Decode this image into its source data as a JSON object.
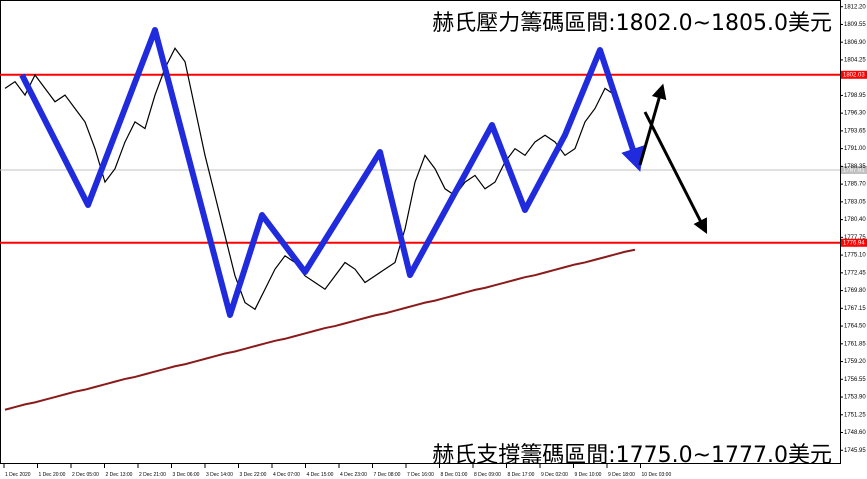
{
  "chart_data": {
    "type": "line",
    "title": "赫氏壓力籌碼區間:1802.0~1805.0美元",
    "subtitle": "赫氏支撐籌碼區間:1775.0~1777.0美元",
    "x_labels": [
      "1 Dec 2020",
      "1 Dec 20:00",
      "2 Dec 05:00",
      "2 Dec 13:00",
      "2 Dec 21:00",
      "3 Dec 06:00",
      "3 Dec 14:00",
      "3 Dec 22:00",
      "4 Dec 07:00",
      "4 Dec 15:00",
      "4 Dec 23:00",
      "7 Dec 08:00",
      "7 Dec 16:00",
      "8 Dec 01:00",
      "8 Dec 09:00",
      "8 Dec 17:00",
      "9 Dec 02:00",
      "9 Dec 10:00",
      "9 Dec 18:00",
      "10 Dec 03:00"
    ],
    "ylim": [
      1743.3,
      1813.2
    ],
    "yticks": [
      1745.95,
      {
        "value": 1748.6,
        "label": "1748.60"
      },
      1751.25,
      {
        "value": 1753.9,
        "label": "1753.90"
      },
      1756.55,
      {
        "value": 1759.2,
        "label": "1759.20"
      },
      1761.85,
      {
        "value": 1764.5,
        "label": "1764.50"
      },
      1767.15,
      {
        "value": 1769.8,
        "label": "1769.80"
      },
      1772.45,
      {
        "value": 1775.1,
        "label": "1775.10"
      },
      1777.75,
      {
        "value": 1780.4,
        "label": "1780.40"
      },
      1783.05,
      {
        "value": 1785.7,
        "label": "1785.70"
      },
      1788.35,
      {
        "value": 1791.0,
        "label": "1791.00"
      },
      1793.65,
      {
        "value": 1796.3,
        "label": "1796.30"
      },
      1798.95,
      1804.25,
      {
        "value": 1806.9,
        "label": "1806.90"
      },
      1809.55,
      {
        "value": 1812.2,
        "label": "1812.20"
      }
    ],
    "levels": [
      {
        "value": 1802.03,
        "color": "#ff0000"
      },
      {
        "value": 1787.81,
        "color": "#c0c0c0"
      },
      {
        "value": 1776.94,
        "color": "#ff0000"
      }
    ],
    "series": [
      {
        "color": "#000000",
        "values": [
          1800,
          1801,
          1799,
          1802,
          1800,
          1798,
          1799,
          1797,
          1795,
          1791,
          1786,
          1788,
          1792,
          1795,
          1794,
          1799,
          1803,
          1806,
          1804,
          1797,
          1790,
          1784,
          1778,
          1772,
          1768,
          1767,
          1770,
          1773,
          1775,
          1774,
          1772,
          1771,
          1770,
          1772,
          1774,
          1773,
          1771,
          1772,
          1773,
          1774,
          1779,
          1786,
          1790,
          1788,
          1785,
          1784,
          1786,
          1787,
          1785,
          1786,
          1789,
          1791,
          1790,
          1792,
          1793,
          1792,
          1790,
          1791,
          1795,
          1797,
          1800,
          1799,
          1795,
          1790
        ]
      },
      {
        "color": "#8b1a1a",
        "values": [
          1752.0,
          1752.4,
          1752.8,
          1753.1,
          1753.5,
          1753.9,
          1754.3,
          1754.7,
          1755.0,
          1755.4,
          1755.8,
          1756.2,
          1756.6,
          1756.9,
          1757.3,
          1757.7,
          1758.1,
          1758.5,
          1758.8,
          1759.2,
          1759.6,
          1760.0,
          1760.4,
          1760.7,
          1761.1,
          1761.5,
          1761.9,
          1762.3,
          1762.6,
          1763.0,
          1763.4,
          1763.8,
          1764.2,
          1764.5,
          1764.9,
          1765.3,
          1765.7,
          1766.1,
          1766.4,
          1766.8,
          1767.2,
          1767.6,
          1768.0,
          1768.3,
          1768.7,
          1769.1,
          1769.5,
          1769.9,
          1770.2,
          1770.6,
          1771.0,
          1771.4,
          1771.8,
          1772.1,
          1772.5,
          1772.9,
          1773.3,
          1773.7,
          1774.0,
          1774.4,
          1774.8,
          1775.2,
          1775.6,
          1775.9
        ]
      }
    ]
  }
}
